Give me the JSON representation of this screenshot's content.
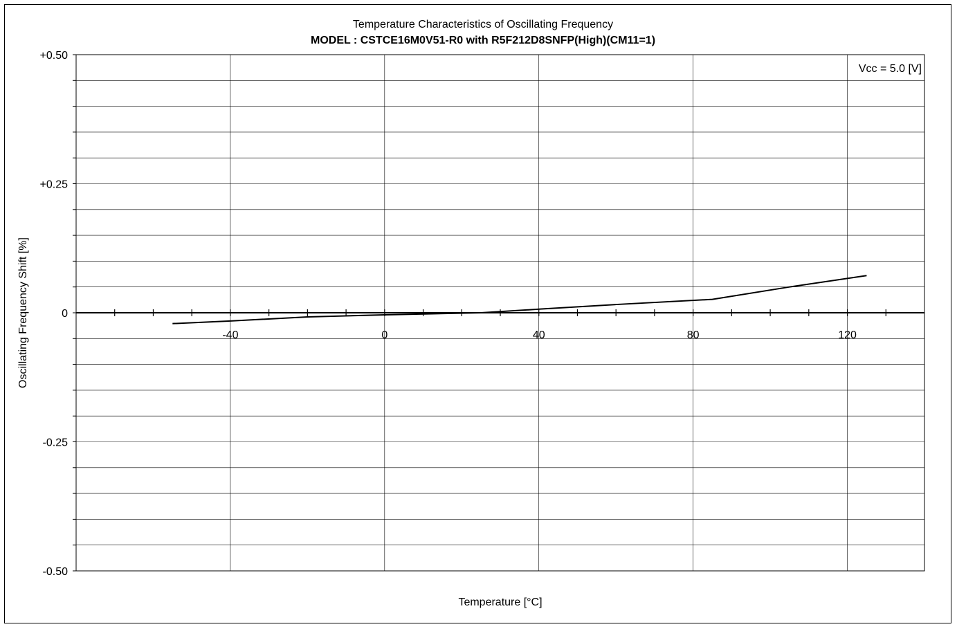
{
  "chart_data": {
    "type": "line",
    "title": "Temperature Characteristics of Oscillating Frequency",
    "subtitle": "MODEL : CSTCE16M0V51-R0 with R5F212D8SNFP(High)(CM11=1)",
    "xlabel": "Temperature [°C]",
    "ylabel": "Oscillating Frequency Shift [%]",
    "annotation": "Vcc = 5.0 [V]",
    "xlim": [
      -80,
      140
    ],
    "ylim": [
      -0.5,
      0.5
    ],
    "x_ticks": [
      -40,
      0,
      40,
      80,
      120
    ],
    "x_tick_labels": [
      "-40",
      "0",
      "40",
      "80",
      "120"
    ],
    "y_ticks": [
      0.5,
      0.25,
      0,
      -0.25,
      -0.5
    ],
    "y_tick_labels": [
      "+0.50",
      "+0.25",
      "0",
      "-0.25",
      "-0.50"
    ],
    "grid": true,
    "series": [
      {
        "x": [
          -55,
          -40,
          -20,
          0,
          25,
          40,
          60,
          85,
          105,
          125
        ],
        "y": [
          -0.021,
          -0.016,
          -0.008,
          -0.004,
          0.0,
          0.007,
          0.016,
          0.026,
          0.05,
          0.072
        ]
      }
    ]
  }
}
